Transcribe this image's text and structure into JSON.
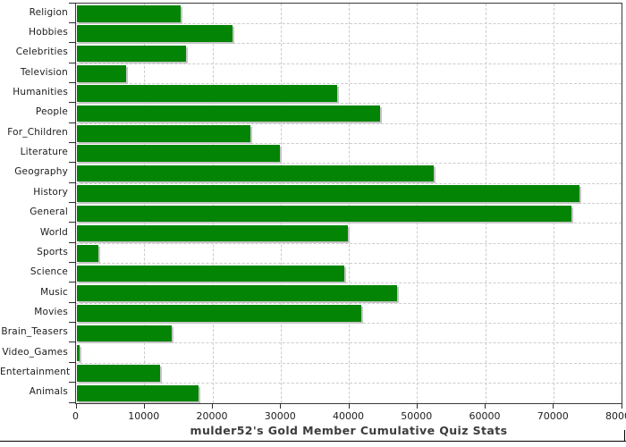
{
  "chart_data": {
    "type": "bar",
    "orientation": "horizontal",
    "title": "mulder52's Gold Member Cumulative Quiz Stats",
    "categories": [
      "Religion",
      "Hobbies",
      "Celebrities",
      "Television",
      "Humanities",
      "People",
      "For_Children",
      "Literature",
      "Geography",
      "History",
      "General",
      "World",
      "Sports",
      "Science",
      "Music",
      "Movies",
      "Brain_Teasers",
      "Video_Games",
      "Entertainment",
      "Animals"
    ],
    "values": [
      15200,
      22800,
      16000,
      7200,
      38200,
      44400,
      25500,
      29800,
      52300,
      73700,
      72500,
      39700,
      3200,
      39200,
      47000,
      41700,
      13900,
      400,
      12200,
      17900
    ],
    "xlabel": "",
    "ylabel": "",
    "xlim": [
      0,
      80000
    ],
    "x_ticks": [
      0,
      10000,
      20000,
      30000,
      40000,
      50000,
      60000,
      70000,
      80000
    ],
    "x_tick_labels": [
      "0",
      "10000",
      "20000",
      "30000",
      "40000",
      "50000",
      "60000",
      "70000",
      "80000"
    ],
    "grid": "dashed, both directions",
    "legend": "none",
    "colors": {
      "bar": "#048404",
      "bar_shadow": "#c6c6c6",
      "grid": "#cccccc",
      "plot_border": "#3a3a3a",
      "tick": "#2a2a2a",
      "label_text": "#1c1c1c",
      "title_text": "#3c3c3c",
      "background": "#ffffff",
      "frame_line": "#000000"
    }
  }
}
